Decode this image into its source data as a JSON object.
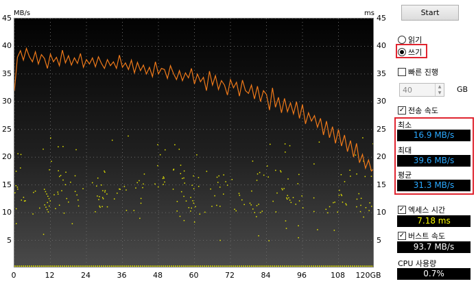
{
  "chart": {
    "y_left_unit": "MB/s",
    "y_right_unit": "ms",
    "y_ticks": [
      "45",
      "40",
      "35",
      "30",
      "25",
      "20",
      "15",
      "10",
      "5"
    ],
    "x_ticks": [
      "0",
      "12",
      "24",
      "36",
      "48",
      "60",
      "72",
      "84",
      "96",
      "108",
      "120GB"
    ]
  },
  "chart_data": {
    "type": "line",
    "xlabel": "",
    "ylabel": "MB/s",
    "xlim": [
      0,
      120
    ],
    "ylim": [
      0,
      45
    ],
    "y2lim": [
      0,
      45
    ],
    "grid": true,
    "series": [
      {
        "color": "#f07a1a",
        "x": [
          0,
          1,
          2,
          3,
          4,
          5,
          6,
          7,
          8,
          9,
          10,
          11,
          12,
          13,
          14,
          15,
          16,
          17,
          18,
          19,
          20,
          21,
          22,
          23,
          24,
          25,
          26,
          27,
          28,
          29,
          30,
          31,
          32,
          33,
          34,
          35,
          36,
          37,
          38,
          39,
          40,
          41,
          42,
          43,
          44,
          45,
          46,
          47,
          48,
          49,
          50,
          51,
          52,
          53,
          54,
          55,
          56,
          57,
          58,
          59,
          60,
          61,
          62,
          63,
          64,
          65,
          66,
          67,
          68,
          69,
          70,
          71,
          72,
          73,
          74,
          75,
          76,
          77,
          78,
          79,
          80,
          81,
          82,
          83,
          84,
          85,
          86,
          87,
          88,
          89,
          90,
          91,
          92,
          93,
          94,
          95,
          96,
          97,
          98,
          99,
          100,
          101,
          102,
          103,
          104,
          105,
          106,
          107,
          108,
          109,
          110,
          111,
          112,
          113,
          114,
          115,
          116,
          117,
          118,
          119,
          120
        ],
        "values": [
          32.0,
          38.0,
          39.2,
          37.5,
          39.6,
          38.1,
          37.2,
          39.0,
          36.8,
          38.5,
          37.8,
          36.0,
          38.6,
          37.2,
          38.0,
          36.5,
          39.3,
          37.0,
          38.3,
          36.6,
          37.9,
          36.9,
          38.7,
          36.2,
          37.6,
          36.8,
          37.9,
          36.3,
          38.1,
          36.9,
          36.0,
          37.6,
          36.5,
          37.2,
          36.0,
          38.4,
          36.2,
          37.0,
          35.8,
          37.5,
          35.2,
          37.1,
          35.6,
          36.6,
          35.0,
          36.2,
          34.5,
          37.2,
          35.0,
          36.0,
          35.8,
          34.2,
          36.5,
          35.1,
          34.0,
          35.6,
          33.8,
          35.2,
          34.3,
          36.0,
          33.2,
          35.0,
          33.6,
          34.4,
          32.0,
          35.5,
          33.0,
          34.7,
          32.2,
          33.8,
          33.0,
          31.2,
          34.0,
          32.5,
          33.5,
          31.0,
          33.9,
          32.0,
          31.5,
          33.0,
          30.5,
          32.8,
          30.0,
          32.0,
          31.3,
          28.5,
          32.5,
          29.0,
          30.8,
          28.0,
          30.6,
          28.2,
          29.8,
          27.8,
          30.0,
          27.0,
          29.5,
          26.0,
          28.0,
          26.5,
          27.5,
          25.4,
          27.0,
          24.0,
          26.5,
          23.5,
          25.5,
          22.5,
          25.0,
          22.0,
          24.0,
          21.0,
          23.0,
          20.0,
          22.5,
          19.0,
          20.5,
          18.0,
          19.5,
          17.5,
          18.0
        ]
      }
    ]
  },
  "panel": {
    "start_label": "Start",
    "read_label": "읽기",
    "write_label": "쓰기",
    "quick_label": "빠른 진행",
    "size_value": "40",
    "size_unit": "GB",
    "transfer_label": "전송 속도",
    "min_label": "최소",
    "min_value": "16.9 MB/s",
    "max_label": "최대",
    "max_value": "39.6 MB/s",
    "avg_label": "평균",
    "avg_value": "31.3 MB/s",
    "access_label": "엑세스 시간",
    "access_value": "7.18 ms",
    "burst_label": "버스트 속도",
    "burst_value": "93.7 MB/s",
    "cpu_label": "CPU 사용량",
    "cpu_value": "0.7%"
  },
  "colors": {
    "transfer_line": "#f07a1a",
    "access_dots": "#e8e800",
    "speed_text": "#2aa8ff",
    "access_text": "#ffff00",
    "burst_text": "#ffffff",
    "highlight": "#e0242f"
  }
}
